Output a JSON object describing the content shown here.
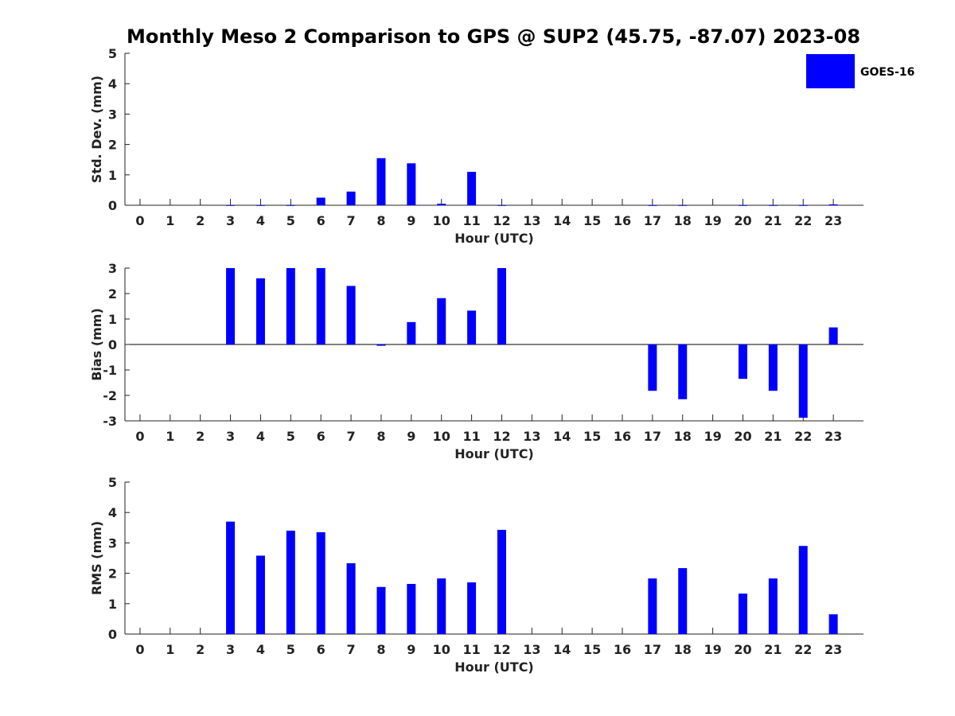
{
  "figure": {
    "title": "Monthly Meso 2 Comparison to GPS @ SUP2 (45.75, -87.07) 2023-08"
  },
  "legend": {
    "label": "GOES-16",
    "color": "#0000ff",
    "position": "top-right"
  },
  "chart_data": [
    {
      "type": "bar",
      "name": "std-dev",
      "xlabel": "Hour (UTC)",
      "ylabel": "Std. Dev. (mm)",
      "ylim": [
        0,
        5
      ],
      "yticks": [
        0,
        1,
        2,
        3,
        4,
        5
      ],
      "categories": [
        "0",
        "1",
        "2",
        "3",
        "4",
        "5",
        "6",
        "7",
        "8",
        "9",
        "10",
        "11",
        "12",
        "13",
        "14",
        "15",
        "16",
        "17",
        "18",
        "19",
        "20",
        "21",
        "22",
        "23"
      ],
      "series": [
        {
          "name": "GOES-16",
          "color": "#0000ff",
          "values": [
            null,
            null,
            null,
            0,
            0,
            0,
            0.25,
            0.45,
            1.55,
            1.38,
            0.05,
            1.1,
            0,
            null,
            null,
            null,
            null,
            0,
            0,
            null,
            0,
            0,
            0,
            0.03
          ]
        }
      ]
    },
    {
      "type": "bar",
      "name": "bias",
      "xlabel": "Hour (UTC)",
      "ylabel": "Bias (mm)",
      "ylim": [
        -3,
        3
      ],
      "yticks": [
        -3,
        -2,
        -1,
        0,
        1,
        2,
        3
      ],
      "categories": [
        "0",
        "1",
        "2",
        "3",
        "4",
        "5",
        "6",
        "7",
        "8",
        "9",
        "10",
        "11",
        "12",
        "13",
        "14",
        "15",
        "16",
        "17",
        "18",
        "19",
        "20",
        "21",
        "22",
        "23"
      ],
      "series": [
        {
          "name": "GOES-16",
          "color": "#0000ff",
          "values": [
            null,
            null,
            null,
            3.0,
            2.6,
            3.0,
            3.0,
            2.3,
            -0.05,
            0.88,
            1.82,
            1.33,
            3.0,
            null,
            null,
            null,
            null,
            -1.82,
            -2.15,
            null,
            -1.35,
            -1.82,
            -2.88,
            0.67
          ]
        }
      ]
    },
    {
      "type": "bar",
      "name": "rms",
      "xlabel": "Hour (UTC)",
      "ylabel": "RMS (mm)",
      "ylim": [
        0,
        5
      ],
      "yticks": [
        0,
        1,
        2,
        3,
        4,
        5
      ],
      "categories": [
        "0",
        "1",
        "2",
        "3",
        "4",
        "5",
        "6",
        "7",
        "8",
        "9",
        "10",
        "11",
        "12",
        "13",
        "14",
        "15",
        "16",
        "17",
        "18",
        "19",
        "20",
        "21",
        "22",
        "23"
      ],
      "series": [
        {
          "name": "GOES-16",
          "color": "#0000ff",
          "values": [
            null,
            null,
            null,
            3.7,
            2.58,
            3.4,
            3.35,
            2.33,
            1.55,
            1.65,
            1.83,
            1.7,
            3.43,
            null,
            null,
            null,
            null,
            1.83,
            2.17,
            null,
            1.33,
            1.83,
            2.9,
            0.65
          ]
        }
      ]
    }
  ]
}
